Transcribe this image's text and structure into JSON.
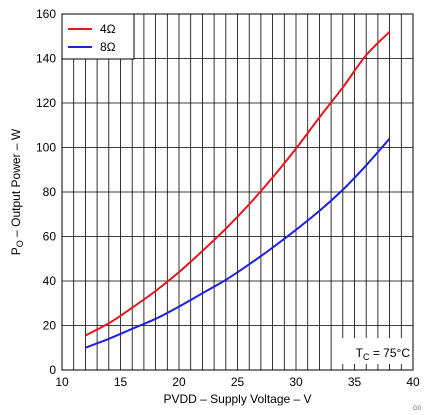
{
  "chart_data": {
    "type": "line",
    "title": "",
    "xlabel": "PVDD – Supply Voltage – V",
    "ylabel_main": "P",
    "ylabel_sub": "O",
    "ylabel_rest": " – Output Power – W",
    "xlim": [
      10,
      40
    ],
    "ylim": [
      0,
      160
    ],
    "x_ticks": [
      10,
      15,
      20,
      25,
      30,
      35,
      40
    ],
    "y_ticks": [
      0,
      20,
      40,
      60,
      80,
      100,
      120,
      140,
      160
    ],
    "x_minor_step": 1,
    "grid": true,
    "legend_position": "top-left",
    "series": [
      {
        "name": "4Ω",
        "color": "#e8161b",
        "x": [
          12,
          14,
          16,
          18,
          20,
          22,
          24,
          26,
          28,
          30,
          32,
          34,
          36,
          38
        ],
        "y": [
          15.5,
          21,
          28,
          35.5,
          44,
          53.5,
          63.5,
          74.5,
          86.5,
          99.5,
          113.5,
          127,
          141.5,
          152
        ]
      },
      {
        "name": "8Ω",
        "color": "#1f1fe0",
        "x": [
          12,
          14,
          16,
          18,
          20,
          22,
          24,
          26,
          28,
          30,
          32,
          34,
          36,
          38
        ],
        "y": [
          10,
          14,
          18.5,
          23,
          28.5,
          34.5,
          40.5,
          47.5,
          55,
          63,
          71.5,
          81,
          92,
          104
        ]
      }
    ],
    "annotation_main": "T",
    "annotation_sub": "C",
    "annotation_rest": " = 75°C"
  },
  "corner_code": "G0"
}
